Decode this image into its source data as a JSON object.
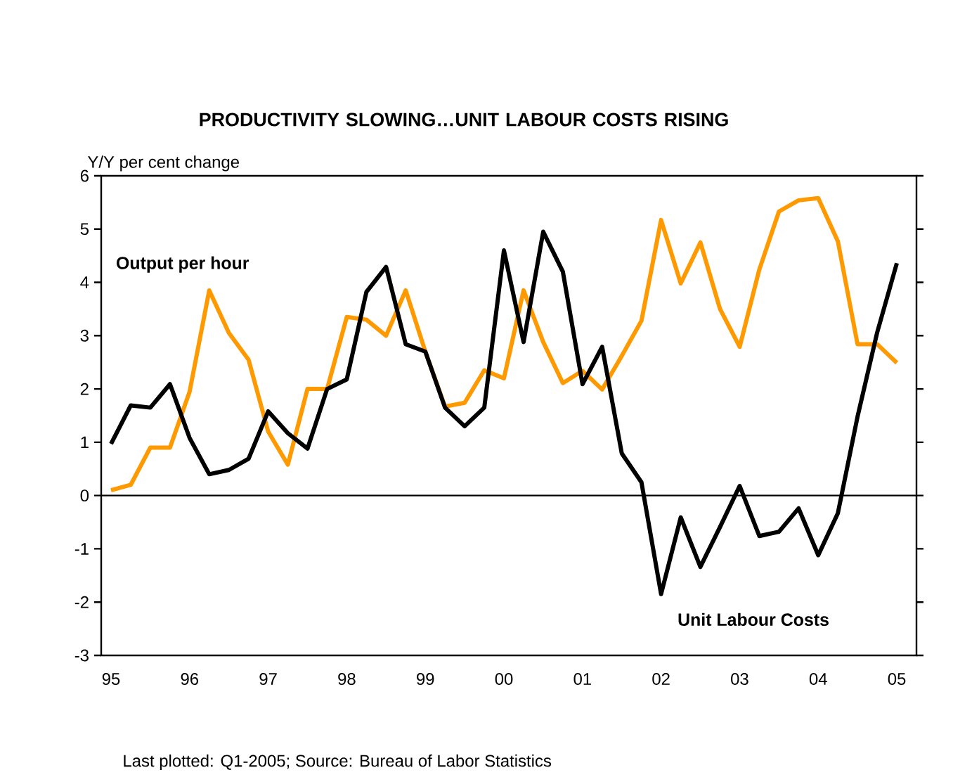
{
  "chart_data": {
    "type": "line",
    "title": "PRODUCTIVITY SLOWING…UNIT LABOUR COSTS RISING",
    "ylabel": "Y/Y per cent change",
    "x": [
      1995,
      1995.25,
      1995.5,
      1995.75,
      1996,
      1996.25,
      1996.5,
      1996.75,
      1997,
      1997.25,
      1997.5,
      1997.75,
      1998,
      1998.25,
      1998.5,
      1998.75,
      1999,
      1999.25,
      1999.5,
      1999.75,
      2000,
      2000.25,
      2000.5,
      2000.75,
      2001,
      2001.25,
      2001.5,
      2001.75,
      2002,
      2002.25,
      2002.5,
      2002.75,
      2003,
      2003.25,
      2003.5,
      2003.75,
      2004,
      2004.25,
      2004.5,
      2004.75,
      2005
    ],
    "series": [
      {
        "name": "Output per hour",
        "color": "#ff9900",
        "values": [
          0.1,
          0.2,
          0.9,
          0.9,
          1.95,
          3.85,
          3.05,
          2.55,
          1.2,
          0.58,
          2.0,
          2.0,
          3.35,
          3.3,
          3.0,
          3.85,
          2.7,
          1.67,
          1.74,
          2.35,
          2.2,
          3.85,
          2.88,
          2.11,
          2.34,
          1.99,
          2.62,
          3.28,
          5.17,
          3.98,
          4.75,
          3.5,
          2.79,
          4.24,
          5.33,
          5.54,
          5.58,
          4.77,
          2.84,
          2.84,
          2.49
        ]
      },
      {
        "name": "Unit Labour Costs",
        "color": "#000000",
        "values": [
          0.97,
          1.69,
          1.65,
          2.09,
          1.08,
          0.4,
          0.48,
          0.69,
          1.58,
          1.17,
          0.88,
          2.0,
          2.18,
          3.82,
          4.29,
          2.84,
          2.7,
          1.65,
          1.3,
          1.65,
          4.6,
          2.88,
          4.95,
          4.2,
          2.09,
          2.79,
          0.79,
          0.25,
          -1.85,
          -0.41,
          -1.34,
          -0.59,
          0.18,
          -0.76,
          -0.68,
          -0.24,
          -1.12,
          -0.33,
          1.48,
          3.06,
          4.36
        ]
      }
    ],
    "xlim": [
      1994.875,
      2005.25
    ],
    "ylim": [
      -3,
      6
    ],
    "xticks": [
      {
        "value": 1995,
        "label": "95"
      },
      {
        "value": 1996,
        "label": "96"
      },
      {
        "value": 1997,
        "label": "97"
      },
      {
        "value": 1998,
        "label": "98"
      },
      {
        "value": 1999,
        "label": "99"
      },
      {
        "value": 2000,
        "label": "00"
      },
      {
        "value": 2001,
        "label": "01"
      },
      {
        "value": 2002,
        "label": "02"
      },
      {
        "value": 2003,
        "label": "03"
      },
      {
        "value": 2004,
        "label": "04"
      },
      {
        "value": 2005,
        "label": "05"
      }
    ],
    "yticks": [
      -3,
      -2,
      -1,
      0,
      1,
      2,
      3,
      4,
      5,
      6
    ],
    "ref_lines": [
      {
        "axis": "y",
        "value": 0,
        "color": "#000000"
      }
    ],
    "grid": false,
    "legend": false,
    "marker": "none",
    "line_style": "solid",
    "annotations": [
      "Last plotted: Q1-2005; Source: Bureau of Labor Statistics"
    ]
  }
}
